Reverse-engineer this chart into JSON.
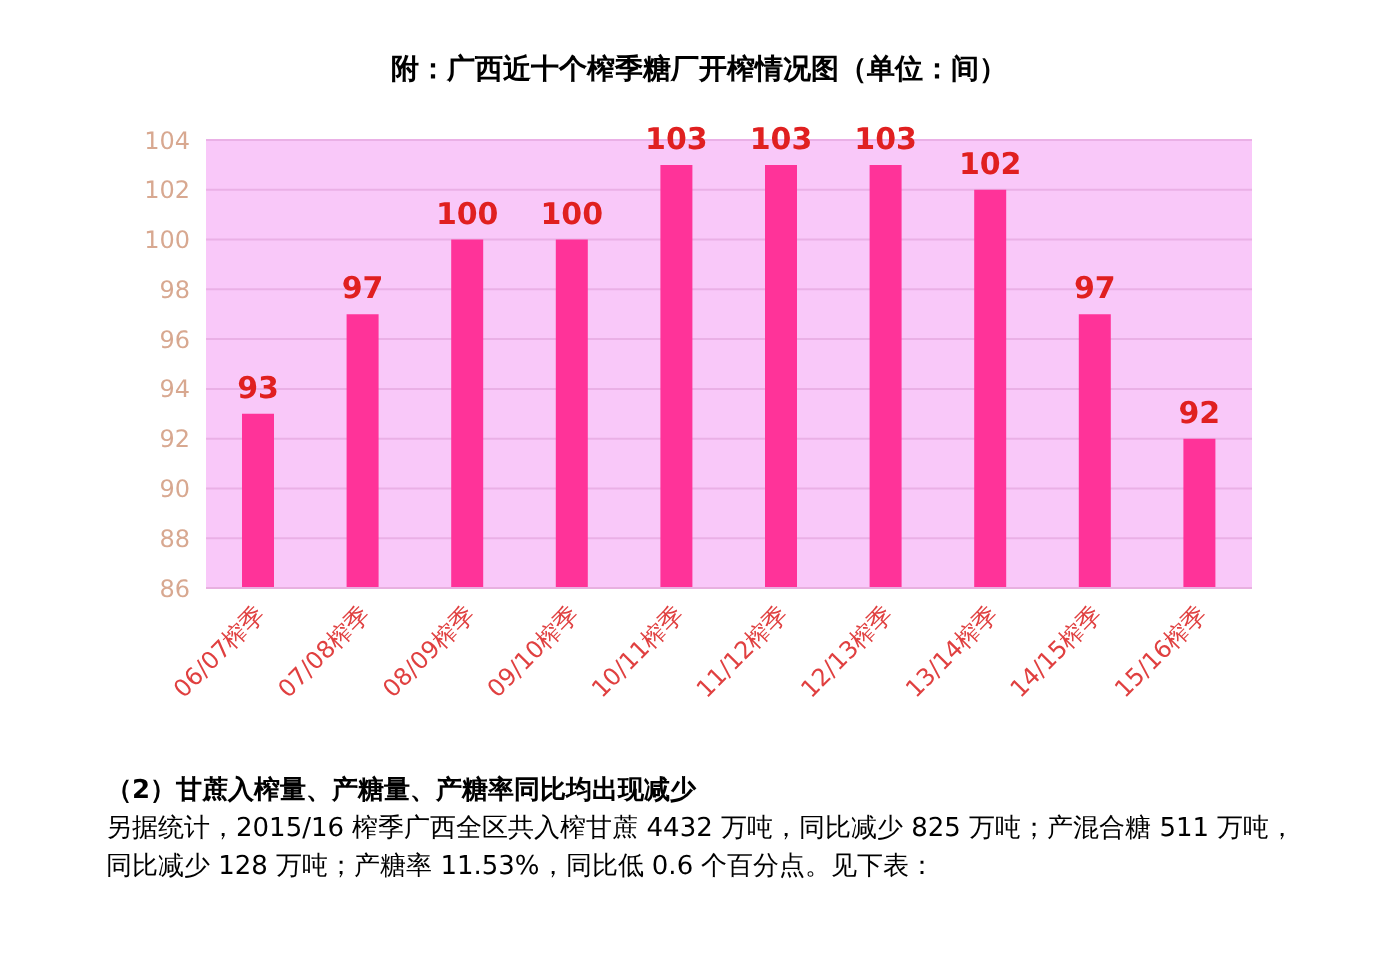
{
  "chart_data": {
    "type": "bar",
    "title": "附：广西近十个榨季糖厂开榨情况图（单位：间）",
    "categories": [
      "06/07榨季",
      "07/08榨季",
      "08/09榨季",
      "09/10榨季",
      "10/11榨季",
      "11/12榨季",
      "12/13榨季",
      "13/14榨季",
      "14/15榨季",
      "15/16榨季"
    ],
    "values": [
      93,
      97,
      100,
      100,
      103,
      103,
      103,
      102,
      97,
      92
    ],
    "color": "#ff3399",
    "ylim": [
      86,
      104
    ],
    "yticks": [
      86,
      88,
      90,
      92,
      94,
      96,
      98,
      100,
      102,
      104
    ],
    "grid": "y",
    "data_labels": true,
    "annotations": [
      "（2）甘蔗入榨量、产糖量、产糖率同比均出现减少",
      "另据统计，2015/16 榨季广西全区共入榨甘蔗 4432 万吨，同比减少 825 万吨；产混合糖 511 万吨，同比减少 128 万吨；产糖率 11.53%，同比低 0.6 个百分点。见下表："
    ]
  }
}
